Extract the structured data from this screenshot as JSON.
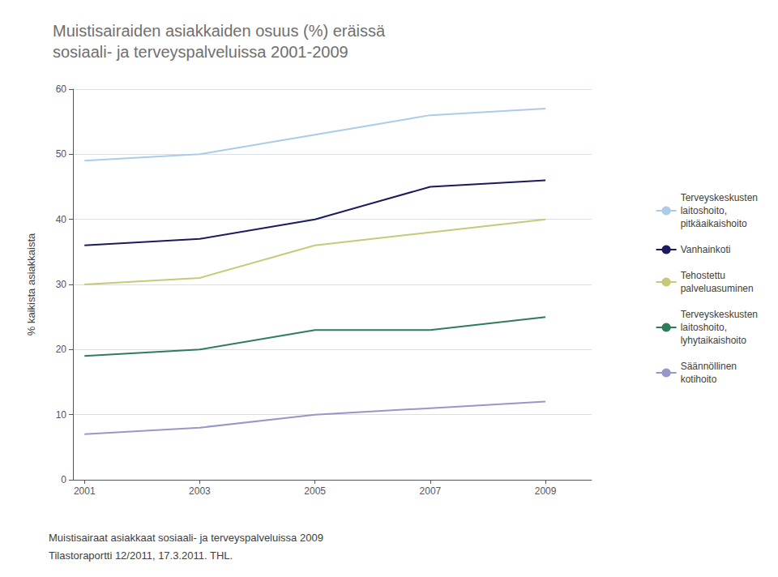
{
  "chart_data": {
    "type": "line",
    "title": "Muistisairaiden asiakkaiden osuus (%) eräissä\nsosiaali- ja terveyspalveluissa 2001-2009",
    "annotations": [
      "Muistisairaat asiakkaat sosiaali- ja terveyspalveluissa 2009",
      "Tilastoraportti 12/2011, 17.3.2011. THL."
    ],
    "ylabel": "% kaikista asiakkaista",
    "x": [
      2001,
      2003,
      2005,
      2007,
      2009
    ],
    "series": [
      {
        "name": "Terveyskeskusten\nlaitoshoito,\npitkäaikaishoito",
        "color": "#aacce8",
        "values": [
          49,
          50,
          53,
          56,
          57
        ]
      },
      {
        "name": "Vanhainkoti",
        "color": "#1a1a5e",
        "values": [
          36,
          37,
          40,
          45,
          46
        ]
      },
      {
        "name": "Tehostettu\npalveluasuminen",
        "color": "#c8c87a",
        "values": [
          30,
          31,
          36,
          38,
          40
        ]
      },
      {
        "name": "Terveyskeskusten\nlaitoshoito,\nlyhytaikaishoito",
        "color": "#2e7d5a",
        "values": [
          19,
          20,
          23,
          23,
          25
        ]
      },
      {
        "name": "Säännöllinen\nkotihoito",
        "color": "#9898c8",
        "values": [
          7,
          8,
          10,
          11,
          12
        ]
      }
    ],
    "xlim": [
      2000.8,
      2009.8
    ],
    "xticks": [
      2001,
      2003,
      2005,
      2007,
      2009
    ],
    "ylim": [
      0,
      60
    ],
    "yticks": [
      0,
      10,
      20,
      30,
      40,
      50,
      60
    ],
    "grid": true,
    "legend": "right"
  }
}
